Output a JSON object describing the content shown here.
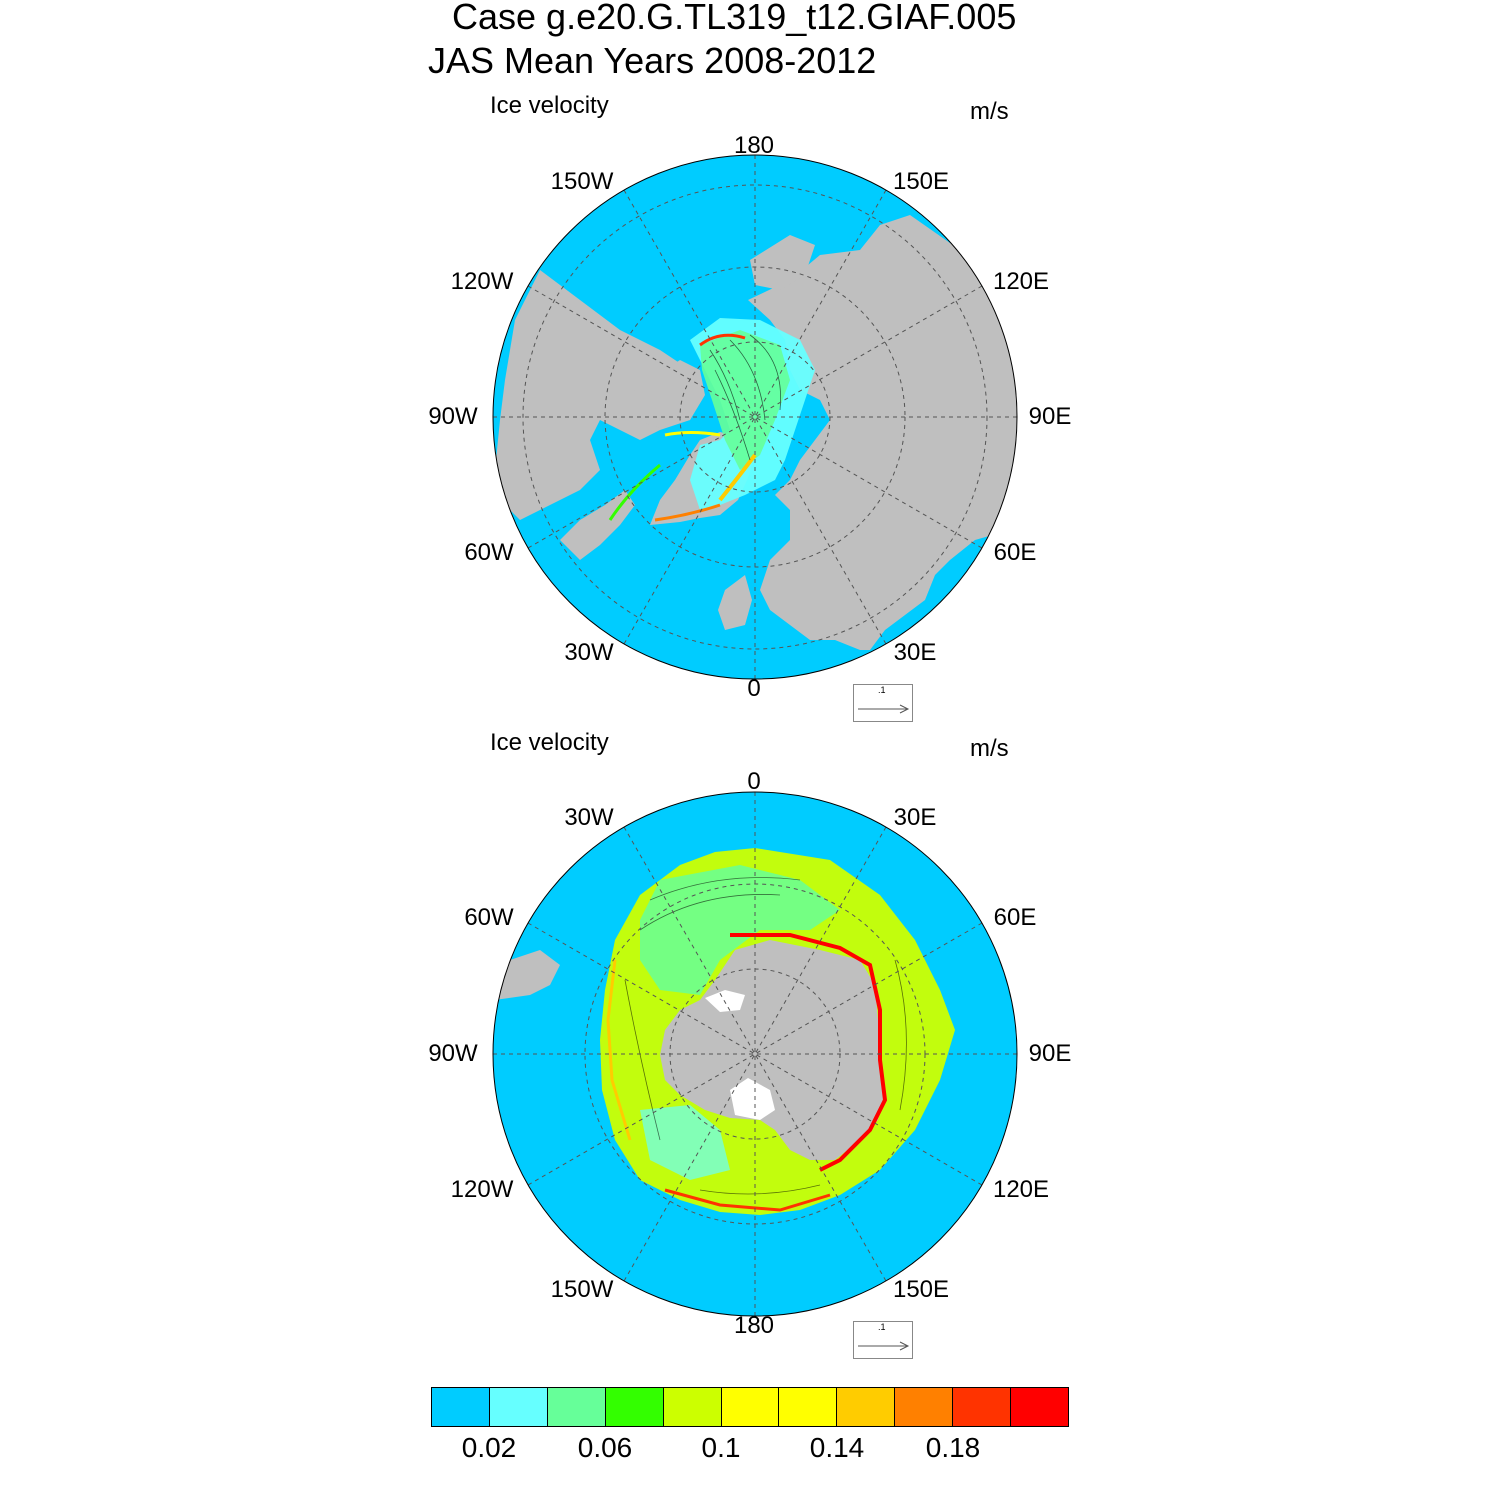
{
  "title": {
    "line1": "Case g.e20.G.TL319_t12.GIAF.005",
    "line2": "JAS Mean   Years 2008-2012"
  },
  "panels": [
    {
      "name": "Ice velocity",
      "units": "m/s",
      "hemisphere": "north",
      "lon_labels": [
        "180",
        "150E",
        "120E",
        "90E",
        "60E",
        "30E",
        "0",
        "30W",
        "60W",
        "90W",
        "120W",
        "150W"
      ],
      "ref_vector": ".1"
    },
    {
      "name": "Ice velocity",
      "units": "m/s",
      "hemisphere": "south",
      "lon_labels": [
        "0",
        "30E",
        "60E",
        "90E",
        "120E",
        "150E",
        "180",
        "150W",
        "120W",
        "90W",
        "60W",
        "30W"
      ],
      "ref_vector": ".1"
    }
  ],
  "colorbar": {
    "colors": [
      "#00ccff",
      "#66ffff",
      "#66ff99",
      "#33ff00",
      "#ccff00",
      "#ffff00",
      "#ffff00",
      "#ffcc00",
      "#ff8000",
      "#ff3300",
      "#ff0000"
    ],
    "tick_labels": [
      "0.02",
      "0.06",
      "0.1",
      "0.14",
      "0.18"
    ]
  },
  "colors": {
    "ocean": "#00ccff",
    "land": "#bfbfbf",
    "grid": "#555555"
  }
}
